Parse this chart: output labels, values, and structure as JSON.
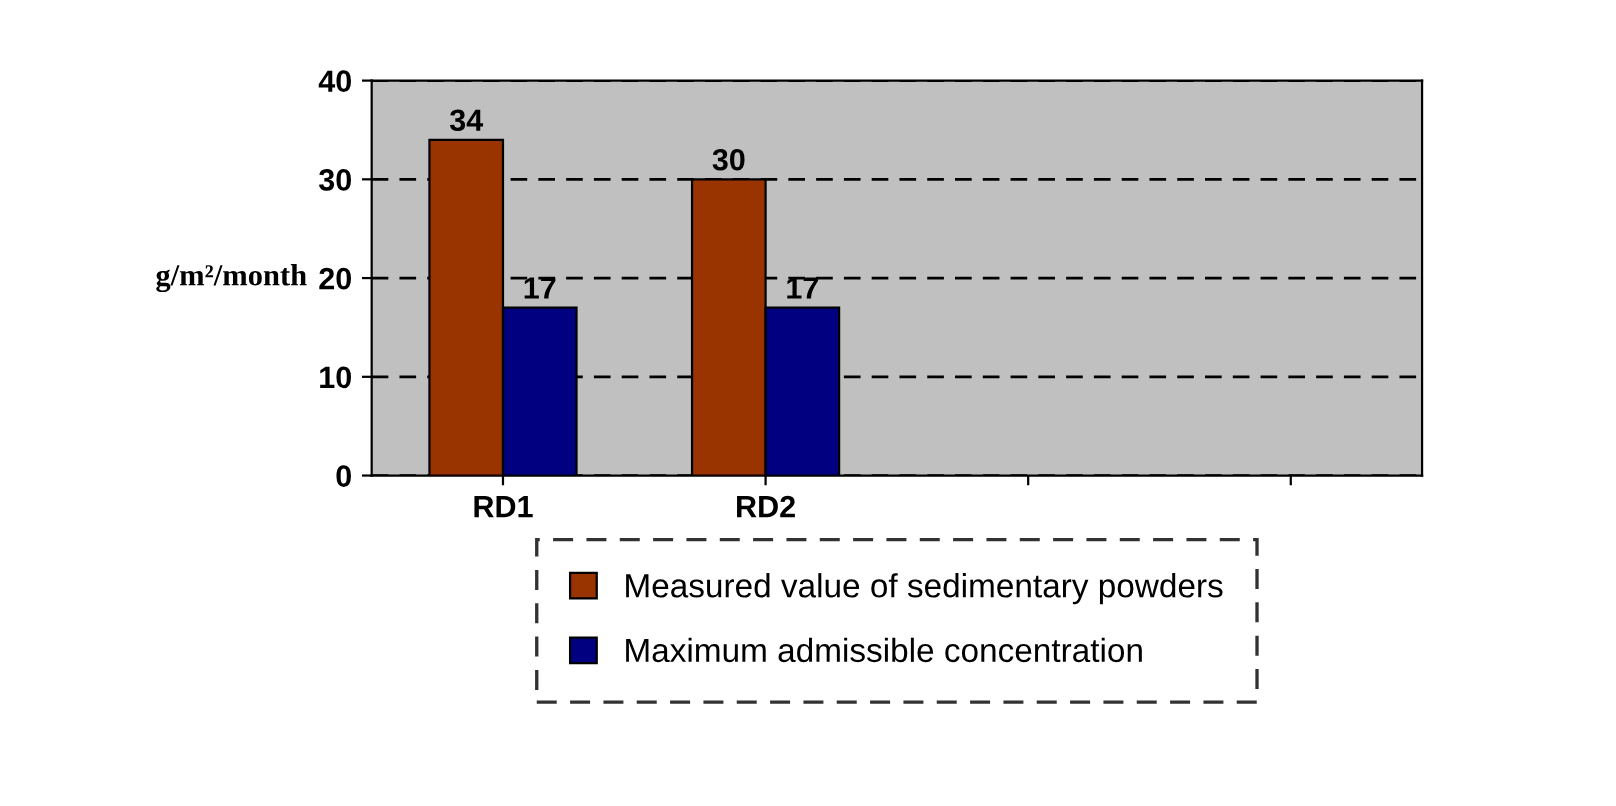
{
  "chart_data": {
    "type": "bar",
    "ylabel": "g/m²/month",
    "categories": [
      "RD1",
      "RD2",
      null,
      null
    ],
    "series": [
      {
        "name": "Measured value of sedimentary powders",
        "color": "#993300",
        "values": [
          34,
          30,
          null,
          null
        ]
      },
      {
        "name": "Maximum admissible concentration",
        "color": "#000080",
        "values": [
          17,
          17,
          null,
          null
        ]
      }
    ],
    "ylim": [
      0,
      40
    ],
    "yticks": [
      0,
      10,
      20,
      30,
      40
    ],
    "grid": "y",
    "legend": "bottom",
    "data_labels": true
  }
}
